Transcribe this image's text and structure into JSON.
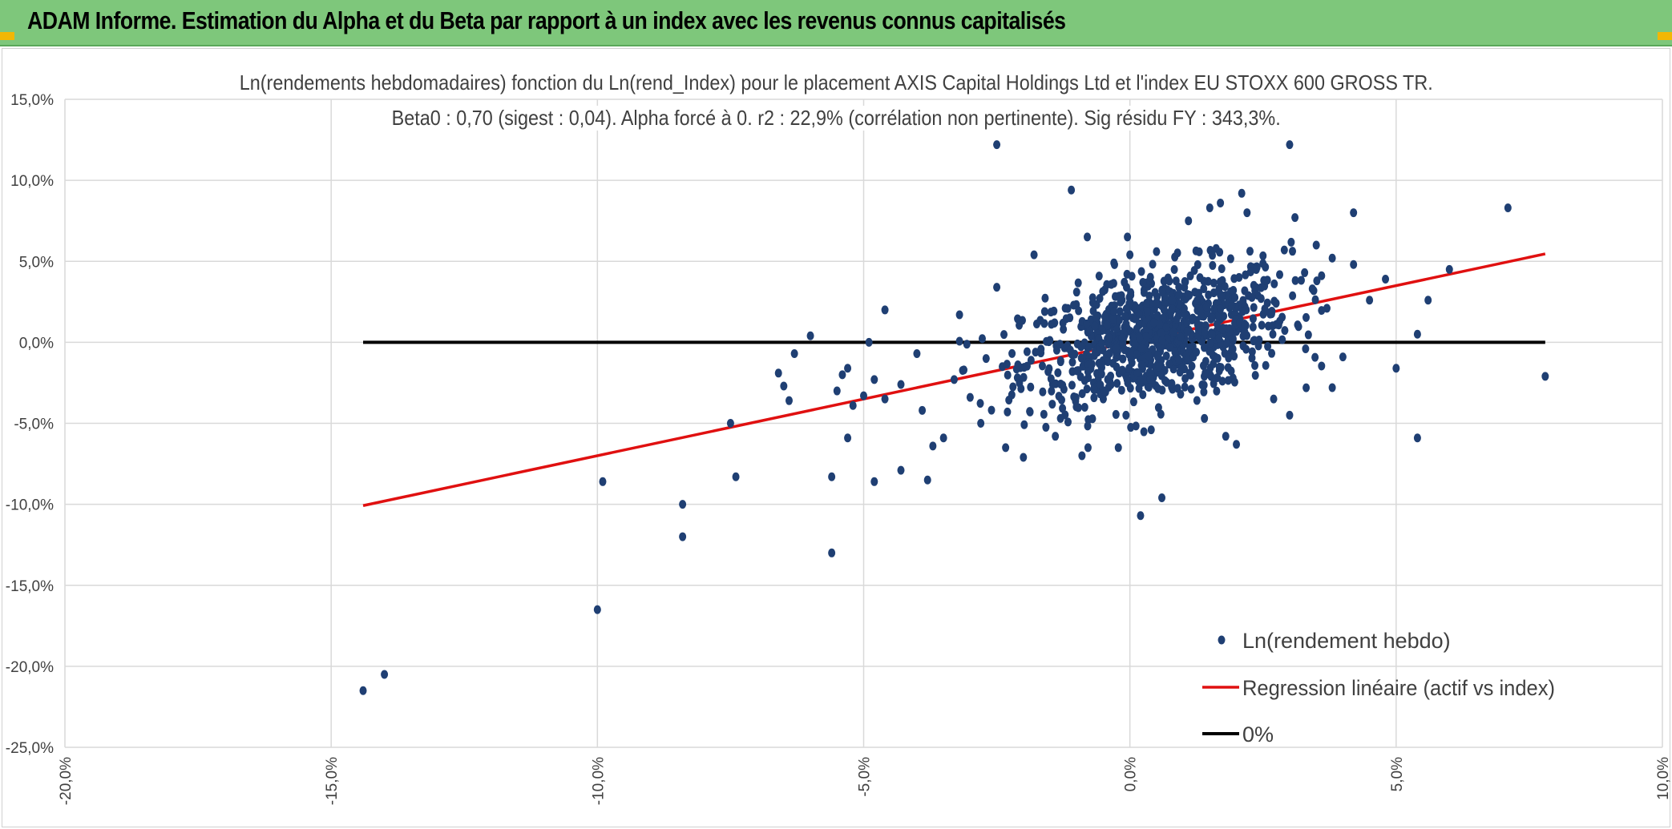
{
  "header": {
    "title": "ADAM Informe. Estimation du Alpha et du Beta par rapport à un index avec les revenus connus capitalisés"
  },
  "colors": {
    "header_bg": "#7ec77b",
    "points": "#1f3f73",
    "regression": "#e01010",
    "zero_line": "#000000",
    "grid": "#d9d9d9",
    "corner_accent": "#f2b705"
  },
  "chart_data": {
    "type": "scatter",
    "title": "Ln(rendements hebdomadaires) fonction du Ln(rend_Index) pour le placement AXIS Capital Holdings Ltd et l'index EU STOXX 600 GROSS TR.",
    "subtitle": "Beta0 : 0,70 (sigest : 0,04). Alpha forcé à 0. r2 : 22,9% (corrélation non pertinente). Sig résidu FY : 343,3%.",
    "xlim": [
      -20,
      10
    ],
    "ylim": [
      -25,
      15
    ],
    "x_ticks": [
      "-20,0%",
      "-15,0%",
      "-10,0%",
      "-5,0%",
      "0,0%",
      "5,0%",
      "10,0%"
    ],
    "x_tick_values": [
      -20,
      -15,
      -10,
      -5,
      0,
      5,
      10
    ],
    "y_ticks": [
      "15,0%",
      "10,0%",
      "5,0%",
      "0,0%",
      "-5,0%",
      "-10,0%",
      "-15,0%",
      "-20,0%",
      "-25,0%"
    ],
    "y_tick_values": [
      15,
      10,
      5,
      0,
      -5,
      -10,
      -15,
      -20,
      -25
    ],
    "grid": true,
    "legend_position": "bottom-right",
    "legend": [
      "Ln(rendement hebdo)",
      "Regression linéaire (actif vs index)",
      "0%"
    ],
    "series": [
      {
        "name": "Ln(rendement hebdo)",
        "kind": "scatter",
        "points": [
          [
            -14.4,
            -21.5
          ],
          [
            -14.0,
            -20.5
          ],
          [
            -10.0,
            -16.5
          ],
          [
            -9.9,
            -8.6
          ],
          [
            -8.4,
            -10.0
          ],
          [
            -8.4,
            -12.0
          ],
          [
            -7.5,
            -5.0
          ],
          [
            -7.4,
            -8.3
          ],
          [
            -6.6,
            -1.9
          ],
          [
            -6.5,
            -2.7
          ],
          [
            -6.4,
            -3.6
          ],
          [
            -6.3,
            -0.7
          ],
          [
            -6.0,
            0.4
          ],
          [
            -5.6,
            -13.0
          ],
          [
            -5.6,
            -8.3
          ],
          [
            -5.5,
            -3.0
          ],
          [
            -5.4,
            -2.0
          ],
          [
            -5.3,
            -5.9
          ],
          [
            -5.3,
            -1.6
          ],
          [
            -5.2,
            -3.9
          ],
          [
            -5.0,
            -3.3
          ],
          [
            -4.9,
            0.0
          ],
          [
            -4.8,
            -2.3
          ],
          [
            -4.8,
            -8.6
          ],
          [
            -4.6,
            -3.5
          ],
          [
            -4.6,
            2.0
          ],
          [
            -4.3,
            -7.9
          ],
          [
            -4.3,
            -2.6
          ],
          [
            -4.0,
            -0.7
          ],
          [
            -3.9,
            -4.2
          ],
          [
            -3.8,
            -8.5
          ],
          [
            -3.7,
            -6.4
          ],
          [
            -3.5,
            -5.9
          ],
          [
            -3.3,
            -2.3
          ],
          [
            -3.2,
            1.7
          ],
          [
            -3.0,
            -3.4
          ],
          [
            -2.8,
            -5.0
          ],
          [
            -2.7,
            -1.0
          ],
          [
            -2.5,
            12.2
          ],
          [
            -2.5,
            3.4
          ],
          [
            -2.3,
            -4.3
          ],
          [
            -2.0,
            -7.1
          ],
          [
            -1.8,
            5.4
          ],
          [
            -1.6,
            1.9
          ],
          [
            -1.4,
            -5.8
          ],
          [
            -1.3,
            -1.2
          ],
          [
            -1.1,
            9.4
          ],
          [
            -1.0,
            3.1
          ],
          [
            -0.9,
            -7.0
          ],
          [
            -0.8,
            6.5
          ],
          [
            -0.7,
            0.4
          ],
          [
            -0.5,
            -3.5
          ],
          [
            -0.3,
            4.9
          ],
          [
            -0.2,
            -1.9
          ],
          [
            0.0,
            5.4
          ],
          [
            0.2,
            -10.7
          ],
          [
            0.4,
            -5.4
          ],
          [
            0.5,
            5.6
          ],
          [
            0.6,
            -9.6
          ],
          [
            0.8,
            -2.9
          ],
          [
            1.1,
            7.5
          ],
          [
            1.2,
            0.3
          ],
          [
            1.4,
            -4.7
          ],
          [
            1.5,
            8.3
          ],
          [
            1.6,
            -0.9
          ],
          [
            1.7,
            8.6
          ],
          [
            1.8,
            -5.8
          ],
          [
            2.0,
            -6.3
          ],
          [
            2.1,
            9.2
          ],
          [
            2.2,
            8.0
          ],
          [
            2.4,
            2.9
          ],
          [
            2.6,
            1.0
          ],
          [
            2.7,
            -3.5
          ],
          [
            2.9,
            5.7
          ],
          [
            3.0,
            12.2
          ],
          [
            3.0,
            -4.5
          ],
          [
            3.1,
            7.7
          ],
          [
            3.3,
            -0.4
          ],
          [
            3.5,
            6.0
          ],
          [
            3.7,
            2.1
          ],
          [
            3.8,
            5.2
          ],
          [
            3.8,
            -2.8
          ],
          [
            4.0,
            -0.9
          ],
          [
            4.2,
            8.0
          ],
          [
            4.2,
            4.8
          ],
          [
            4.5,
            2.6
          ],
          [
            4.8,
            3.9
          ],
          [
            5.0,
            -1.6
          ],
          [
            5.4,
            -5.9
          ],
          [
            5.4,
            0.5
          ],
          [
            5.6,
            2.6
          ],
          [
            6.0,
            4.5
          ],
          [
            7.1,
            8.3
          ],
          [
            7.8,
            -2.1
          ]
        ]
      },
      {
        "name": "Regression linéaire (actif vs index)",
        "kind": "line",
        "points": [
          [
            -14.4,
            -10.08
          ],
          [
            7.8,
            5.46
          ]
        ]
      },
      {
        "name": "0%",
        "kind": "line",
        "points": [
          [
            -14.4,
            0
          ],
          [
            7.8,
            0
          ]
        ]
      }
    ]
  }
}
